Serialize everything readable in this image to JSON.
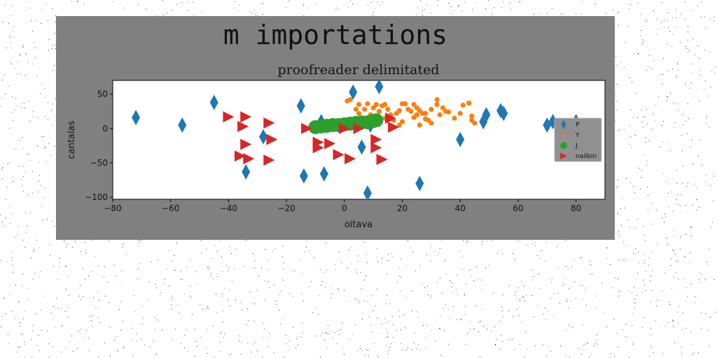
{
  "figure": {
    "title": "m importations",
    "background": "#808080"
  },
  "chart_data": {
    "type": "scatter",
    "title": "proofreader delimitated",
    "xlabel": "oitava",
    "ylabel": "cantalas",
    "xlim": [
      -80,
      90
    ],
    "ylim": [
      -103,
      70
    ],
    "xticks": [
      -80,
      -60,
      -40,
      -20,
      0,
      20,
      40,
      60,
      80
    ],
    "yticks": [
      -100,
      -50,
      0,
      50
    ],
    "grid": false,
    "legend_position": "center-right",
    "series": [
      {
        "name": "P",
        "marker": "thin-diamond",
        "color": "#1f77b4",
        "points": [
          [
            -72,
            16
          ],
          [
            -56,
            5
          ],
          [
            -45,
            38
          ],
          [
            -34,
            -63
          ],
          [
            -28,
            -12
          ],
          [
            -15,
            33
          ],
          [
            -14,
            -69
          ],
          [
            -8,
            10
          ],
          [
            -7,
            -66
          ],
          [
            3,
            53
          ],
          [
            6,
            -27
          ],
          [
            8,
            -94
          ],
          [
            9,
            5
          ],
          [
            12,
            61
          ],
          [
            26,
            -80
          ],
          [
            40,
            -16
          ],
          [
            48,
            10
          ],
          [
            49,
            20
          ],
          [
            54,
            26
          ],
          [
            55,
            22
          ],
          [
            70,
            5
          ],
          [
            72,
            10
          ],
          [
            80,
            10
          ],
          [
            82,
            -35
          ]
        ]
      },
      {
        "name": "Y",
        "marker": "circle",
        "color": "#ff7f0e",
        "points": [
          [
            1,
            40
          ],
          [
            2,
            42
          ],
          [
            4,
            28
          ],
          [
            5,
            35
          ],
          [
            5,
            22
          ],
          [
            7,
            28
          ],
          [
            8,
            36
          ],
          [
            9,
            20
          ],
          [
            10,
            30
          ],
          [
            11,
            35
          ],
          [
            12,
            25
          ],
          [
            13,
            33
          ],
          [
            14,
            35
          ],
          [
            14,
            15
          ],
          [
            15,
            28
          ],
          [
            16,
            20
          ],
          [
            17,
            12
          ],
          [
            18,
            22
          ],
          [
            19,
            5
          ],
          [
            19,
            26
          ],
          [
            20,
            10
          ],
          [
            20,
            36
          ],
          [
            21,
            36
          ],
          [
            22,
            28
          ],
          [
            23,
            25
          ],
          [
            24,
            16
          ],
          [
            24,
            35
          ],
          [
            25,
            30
          ],
          [
            25,
            20
          ],
          [
            26,
            26
          ],
          [
            26,
            5
          ],
          [
            27,
            22
          ],
          [
            28,
            22
          ],
          [
            28,
            14
          ],
          [
            29,
            12
          ],
          [
            30,
            28
          ],
          [
            30,
            8
          ],
          [
            32,
            35
          ],
          [
            32,
            42
          ],
          [
            33,
            20
          ],
          [
            34,
            30
          ],
          [
            35,
            25
          ],
          [
            36,
            24
          ],
          [
            38,
            15
          ],
          [
            40,
            22
          ],
          [
            41,
            34
          ],
          [
            43,
            37
          ],
          [
            44,
            18
          ],
          [
            44,
            12
          ],
          [
            45,
            8
          ]
        ]
      },
      {
        "name": "J",
        "marker": "large-circle",
        "color": "#2ca02c",
        "points": [
          [
            -10,
            2
          ],
          [
            -8,
            3
          ],
          [
            -6,
            4
          ],
          [
            -4,
            5
          ],
          [
            -2,
            5
          ],
          [
            0,
            6
          ],
          [
            2,
            7
          ],
          [
            4,
            8
          ],
          [
            6,
            9
          ],
          [
            8,
            9
          ],
          [
            10,
            11
          ],
          [
            11,
            12
          ]
        ]
      },
      {
        "name": "nailbin",
        "marker": "triangle-right",
        "color": "#d62728",
        "points": [
          [
            -40,
            17
          ],
          [
            -34,
            17
          ],
          [
            -35,
            3
          ],
          [
            -34,
            -23
          ],
          [
            -36,
            -40
          ],
          [
            -33,
            -44
          ],
          [
            -26,
            8
          ],
          [
            -25,
            -16
          ],
          [
            -26,
            -46
          ],
          [
            -13,
            0
          ],
          [
            -9,
            -20
          ],
          [
            -9,
            -28
          ],
          [
            -5,
            -22
          ],
          [
            -2,
            -38
          ],
          [
            0,
            0
          ],
          [
            2,
            -44
          ],
          [
            5,
            0
          ],
          [
            11,
            -16
          ],
          [
            11,
            -28
          ],
          [
            13,
            -45
          ],
          [
            16,
            15
          ],
          [
            17,
            2
          ]
        ]
      }
    ]
  }
}
